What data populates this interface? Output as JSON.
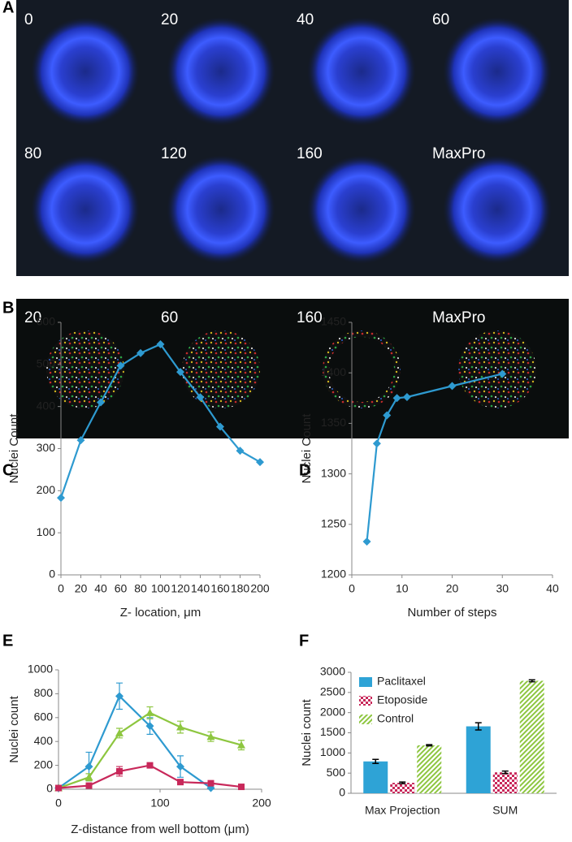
{
  "image_panels": [
    {
      "label": "A",
      "tiles": [
        "0",
        "20",
        "40",
        "60",
        "80",
        "120",
        "160",
        "MaxPro"
      ]
    },
    {
      "label": "B",
      "tiles": [
        "20",
        "60",
        "160",
        "MaxPro"
      ]
    }
  ],
  "chart_data": [
    {
      "type": "line",
      "panel_label": "C",
      "xlabel": "Z- location, μm",
      "ylabel": "Nuclei Count",
      "x": [
        0,
        20,
        40,
        60,
        80,
        100,
        120,
        140,
        160,
        180,
        200
      ],
      "series": [
        {
          "color": "#2e9ad0",
          "marker": "diamond",
          "values": [
            183,
            320,
            410,
            497,
            527,
            548,
            482,
            422,
            352,
            295,
            268
          ]
        }
      ],
      "xlim": [
        0,
        200
      ],
      "xticks": [
        0,
        20,
        40,
        60,
        80,
        100,
        120,
        140,
        160,
        180,
        200
      ],
      "ylim": [
        0,
        600
      ],
      "yticks": [
        0,
        100,
        200,
        300,
        400,
        500,
        600
      ]
    },
    {
      "type": "line",
      "panel_label": "D",
      "xlabel": "Number  of steps",
      "ylabel": "Nuclei Count",
      "x": [
        3,
        5,
        7,
        9,
        11,
        20,
        30
      ],
      "series": [
        {
          "color": "#2e9ad0",
          "marker": "diamond",
          "values": [
            1233,
            1330,
            1358,
            1375,
            1376,
            1387,
            1399
          ]
        }
      ],
      "xlim": [
        0,
        40
      ],
      "xticks": [
        0,
        10,
        20,
        30,
        40
      ],
      "ylim": [
        1200,
        1450
      ],
      "yticks": [
        1200,
        1250,
        1300,
        1350,
        1400,
        1450
      ]
    },
    {
      "type": "line",
      "panel_label": "E",
      "xlabel": "Z-distance from well bottom (μm)",
      "ylabel": "Nuclei count",
      "x": [
        0,
        30,
        60,
        90,
        120,
        150,
        180
      ],
      "series": [
        {
          "color": "#2e9ad0",
          "marker": "diamond",
          "values": [
            10,
            190,
            780,
            530,
            190,
            10,
            null
          ],
          "error": [
            5,
            120,
            110,
            70,
            90,
            5,
            null
          ]
        },
        {
          "color": "#8dc63f",
          "marker": "triangle",
          "values": [
            10,
            100,
            470,
            640,
            520,
            440,
            370
          ],
          "error": [
            5,
            30,
            40,
            50,
            50,
            40,
            40
          ]
        },
        {
          "color": "#c8285a",
          "marker": "square",
          "values": [
            10,
            30,
            150,
            200,
            60,
            50,
            20
          ],
          "error": [
            5,
            10,
            40,
            20,
            20,
            10,
            5
          ]
        }
      ],
      "xlim": [
        0,
        200
      ],
      "xticks": [
        0,
        100,
        200
      ],
      "ylim": [
        0,
        1000
      ],
      "yticks": [
        0,
        200,
        400,
        600,
        800,
        1000
      ]
    },
    {
      "type": "bar",
      "panel_label": "F",
      "ylabel": "Nuclei count",
      "legend": "upper left",
      "categories": [
        "Max Projection",
        "SUM"
      ],
      "series": [
        {
          "name": "Paclitaxel",
          "color": "#2ea3d6",
          "pattern": "solid",
          "values": [
            790,
            1660
          ],
          "error": [
            50,
            90
          ]
        },
        {
          "name": "Etoposide",
          "color": "#c8285a",
          "pattern": "checker",
          "values": [
            260,
            520
          ],
          "error": [
            20,
            30
          ]
        },
        {
          "name": "Control",
          "color": "#8dc63f",
          "pattern": "diagonal",
          "values": [
            1190,
            2790
          ],
          "error": [
            15,
            25
          ]
        }
      ],
      "ylim": [
        0,
        3000
      ],
      "yticks": [
        0,
        500,
        1000,
        1500,
        2000,
        2500,
        3000
      ]
    }
  ]
}
